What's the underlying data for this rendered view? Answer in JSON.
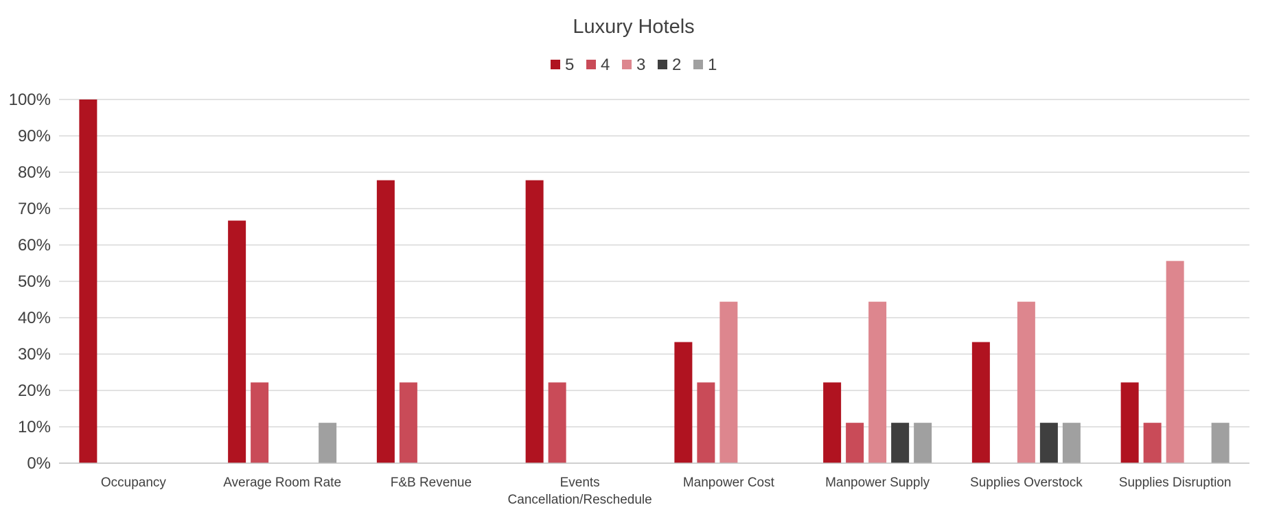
{
  "chart_data": {
    "type": "bar",
    "title": "Luxury Hotels",
    "xlabel": "",
    "ylabel": "",
    "ylim": [
      0,
      1
    ],
    "y_ticks": [
      "0%",
      "10%",
      "20%",
      "30%",
      "40%",
      "50%",
      "60%",
      "70%",
      "80%",
      "90%",
      "100%"
    ],
    "grid": true,
    "legend_position": "top-center",
    "categories": [
      [
        "Occupancy"
      ],
      [
        "Average Room Rate"
      ],
      [
        "F&B Revenue"
      ],
      [
        "Events",
        "Cancellation/Reschedule"
      ],
      [
        "Manpower Cost"
      ],
      [
        "Manpower Supply"
      ],
      [
        "Supplies Overstock"
      ],
      [
        "Supplies Disruption"
      ]
    ],
    "series": [
      {
        "name": "5",
        "color": "#b01320",
        "values": [
          1.0,
          0.667,
          0.778,
          0.778,
          0.333,
          0.222,
          0.333,
          0.222
        ]
      },
      {
        "name": "4",
        "color": "#c94b58",
        "values": [
          0,
          0.222,
          0.222,
          0.222,
          0.222,
          0.111,
          0,
          0.111
        ]
      },
      {
        "name": "3",
        "color": "#dd868e",
        "values": [
          0,
          0,
          0,
          0,
          0.444,
          0.444,
          0.444,
          0.556
        ]
      },
      {
        "name": "2",
        "color": "#3f3f3f",
        "values": [
          0,
          0,
          0,
          0,
          0,
          0.111,
          0.111,
          0
        ]
      },
      {
        "name": "1",
        "color": "#a0a0a0",
        "values": [
          0,
          0.111,
          0,
          0,
          0,
          0.111,
          0.111,
          0.111
        ]
      }
    ]
  }
}
